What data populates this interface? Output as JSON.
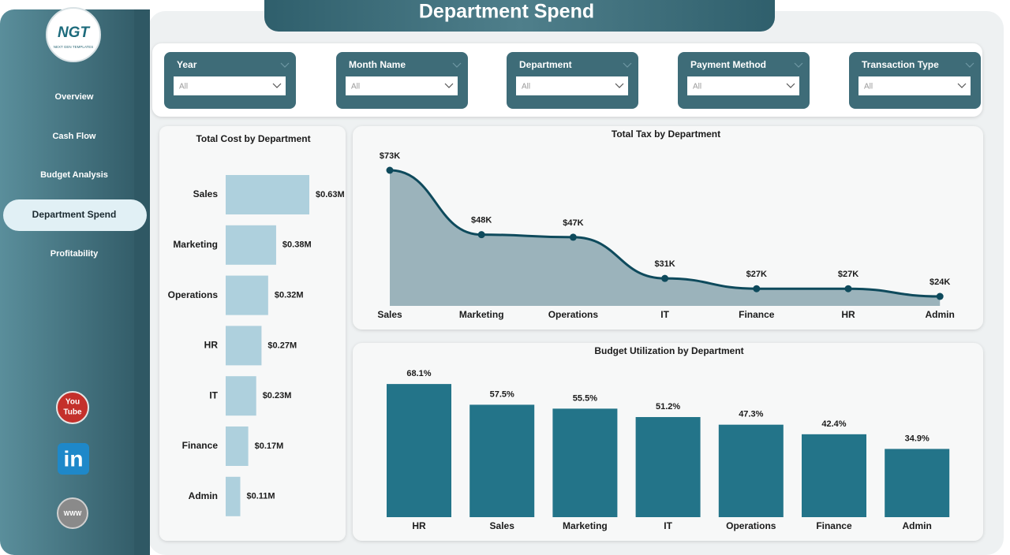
{
  "header": {
    "title": "Department Spend"
  },
  "logo": {
    "name": "NGT",
    "tagline": "NEXT GEN TEMPLATES"
  },
  "nav": [
    "Overview",
    "Cash Flow",
    "Budget Analysis",
    "Department Spend",
    "Profitability"
  ],
  "active_nav": 3,
  "filters": [
    {
      "label": "Year",
      "value": "All"
    },
    {
      "label": "Month Name",
      "value": "All"
    },
    {
      "label": "Department",
      "value": "All"
    },
    {
      "label": "Payment Method",
      "value": "All"
    },
    {
      "label": "Transaction Type",
      "value": "All"
    }
  ],
  "social": {
    "youtube": [
      "You",
      "Tube"
    ],
    "linkedin": "in",
    "web": "WWW"
  },
  "chart_data": [
    {
      "type": "hbar",
      "title": "Total Cost by Department",
      "categories": [
        "Sales",
        "Marketing",
        "Operations",
        "HR",
        "IT",
        "Finance",
        "Admin"
      ],
      "values": [
        0.63,
        0.38,
        0.32,
        0.27,
        0.23,
        0.17,
        0.11
      ],
      "value_labels": [
        "$0.63M",
        "$0.38M",
        "$0.32M",
        "$0.27M",
        "$0.23M",
        "$0.17M",
        "$0.11M"
      ],
      "color": "#aed0dd"
    },
    {
      "type": "area",
      "title": "Total Tax by Department",
      "categories": [
        "Sales",
        "Marketing",
        "Operations",
        "IT",
        "Finance",
        "HR",
        "Admin"
      ],
      "values": [
        73,
        48,
        47,
        31,
        27,
        27,
        24
      ],
      "value_labels": [
        "$73K",
        "$48K",
        "$47K",
        "$31K",
        "$27K",
        "$27K",
        "$24K"
      ],
      "color": "#0e4a5c",
      "fill": "#9bb3bb"
    },
    {
      "type": "bar",
      "title": "Budget Utilization by Department",
      "categories": [
        "HR",
        "Sales",
        "Marketing",
        "IT",
        "Operations",
        "Finance",
        "Admin"
      ],
      "values": [
        68.1,
        57.5,
        55.5,
        51.2,
        47.3,
        42.4,
        34.9
      ],
      "value_labels": [
        "68.1%",
        "57.5%",
        "55.5%",
        "51.2%",
        "47.3%",
        "42.4%",
        "34.9%"
      ],
      "color": "#237489"
    }
  ]
}
